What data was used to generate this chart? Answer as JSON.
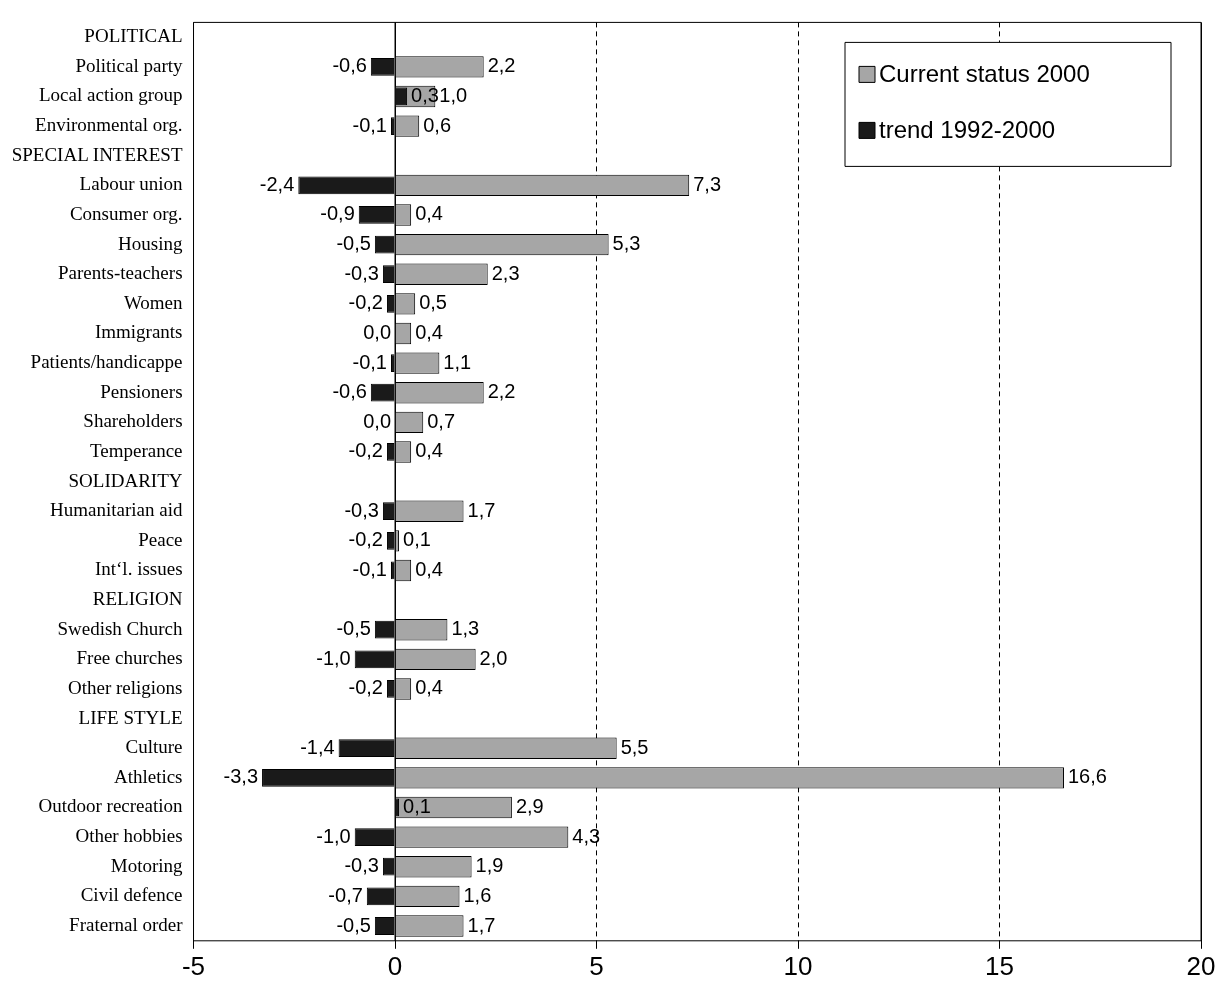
{
  "chart_data": {
    "type": "bar",
    "orientation": "horizontal",
    "categories": [
      "POLITICAL",
      "Political party",
      "Local action group",
      "Environmental org.",
      "SPECIAL INTEREST",
      "Labour union",
      "Consumer org.",
      "Housing",
      "Parents-teachers",
      "Women",
      "Immigrants",
      "Patients/handicappe",
      "Pensioners",
      "Shareholders",
      "Temperance",
      "SOLIDARITY",
      "Humanitarian aid",
      "Peace",
      "Int‘l. issues",
      "RELIGION",
      "Swedish Church",
      "Free churches",
      "Other religions",
      "LIFE STYLE",
      "Culture",
      "Athletics",
      "Outdoor recreation",
      "Other hobbies",
      "Motoring",
      "Civil defence",
      "Fraternal order"
    ],
    "series": [
      {
        "name": "Current status 2000",
        "color": "#a6a6a6",
        "values": [
          null,
          2.2,
          1.0,
          0.6,
          null,
          7.3,
          0.4,
          5.3,
          2.3,
          0.5,
          0.4,
          1.1,
          2.2,
          0.7,
          0.4,
          null,
          1.7,
          0.1,
          0.4,
          null,
          1.3,
          2.0,
          0.4,
          null,
          5.5,
          16.6,
          2.9,
          4.3,
          1.9,
          1.6,
          1.7
        ],
        "value_labels": [
          null,
          "2,2",
          "1,0",
          "0,6",
          null,
          "7,3",
          "0,4",
          "5,3",
          "2,3",
          "0,5",
          "0,4",
          "1,1",
          "2,2",
          "0,7",
          "0,4",
          null,
          "1,7",
          "0,1",
          "0,4",
          null,
          "1,3",
          "2,0",
          "0,4",
          null,
          "5,5",
          "16,6",
          "2,9",
          "4,3",
          "1,9",
          "1,6",
          "1,7"
        ]
      },
      {
        "name": "trend 1992-2000",
        "color": "#1a1a1a",
        "values": [
          null,
          -0.6,
          0.3,
          -0.1,
          null,
          -2.4,
          -0.9,
          -0.5,
          -0.3,
          -0.2,
          0.0,
          -0.1,
          -0.6,
          0.0,
          -0.2,
          null,
          -0.3,
          -0.2,
          -0.1,
          null,
          -0.5,
          -1.0,
          -0.2,
          null,
          -1.4,
          -3.3,
          0.1,
          -1.0,
          -0.3,
          -0.7,
          -0.5
        ],
        "value_labels": [
          null,
          "-0,6",
          "0,3",
          "-0,1",
          null,
          "-2,4",
          "-0,9",
          "-0,5",
          "-0,3",
          "-0,2",
          "0,0",
          "-0,1",
          "-0,6",
          "0,0",
          "-0,2",
          null,
          "-0,3",
          "-0,2",
          "-0,1",
          null,
          "-0,5",
          "-1,0",
          "-0,2",
          null,
          "-1,4",
          "-3,3",
          "0,1",
          "-1,0",
          "-0,3",
          "-0,7",
          "-0,5"
        ]
      }
    ],
    "xlim": [
      -5,
      20
    ],
    "xticks": [
      -5,
      0,
      5,
      10,
      15,
      20
    ],
    "grid": "x",
    "legend": "top right"
  }
}
